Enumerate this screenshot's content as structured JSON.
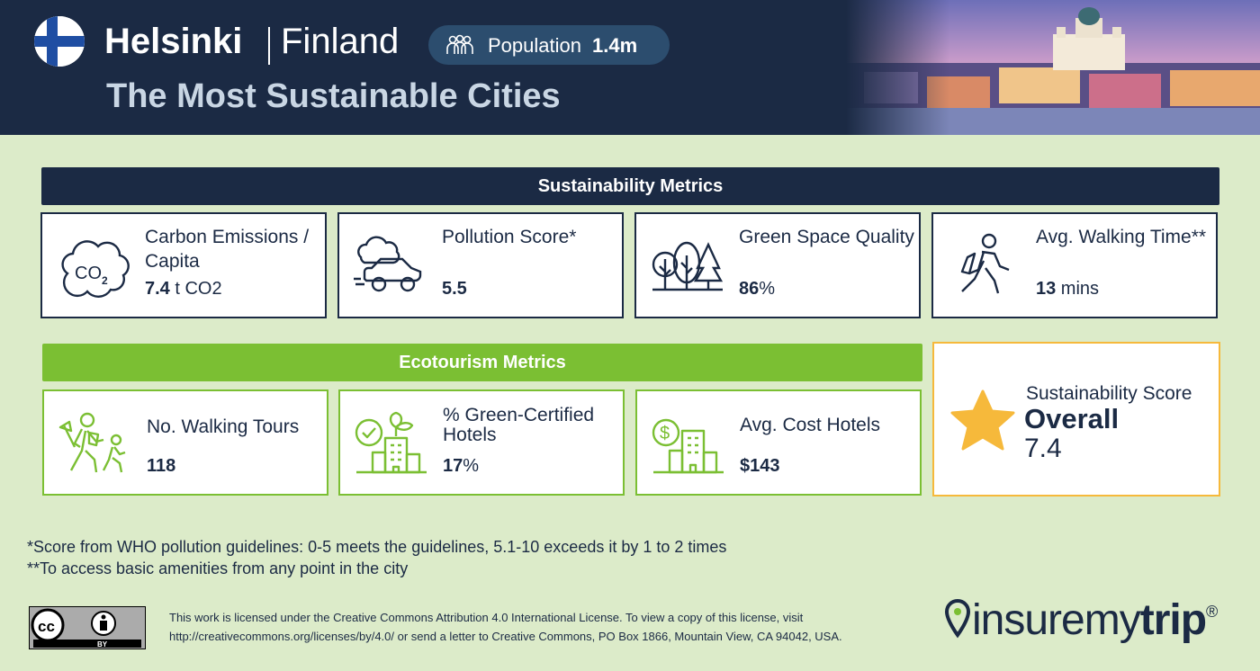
{
  "header": {
    "city": "Helsinki",
    "country": "Finland",
    "population_label": "Population",
    "population_value": "1.4m",
    "subtitle": "The Most Sustainable Cities"
  },
  "sustainability": {
    "title": "Sustainability Metrics",
    "cards": [
      {
        "label": "Carbon Emissions / Capita",
        "value": "7.4",
        "unit": " t CO2",
        "icon": "co2-cloud-icon"
      },
      {
        "label": "Pollution Score*",
        "value": "5.5",
        "unit": "",
        "icon": "car-smog-icon"
      },
      {
        "label": "Green Space Quality",
        "value": "86",
        "unit": "%",
        "icon": "trees-icon"
      },
      {
        "label": "Avg. Walking Time**",
        "value": "13",
        "unit": " mins",
        "icon": "walking-person-icon"
      }
    ]
  },
  "ecotourism": {
    "title": "Ecotourism Metrics",
    "cards": [
      {
        "label": "No. Walking Tours",
        "value": "118",
        "unit": "",
        "icon": "walking-tour-icon"
      },
      {
        "label": "% Green-Certified Hotels",
        "value": "17",
        "unit": "%",
        "icon": "green-hotel-icon"
      },
      {
        "label": "Avg. Cost Hotels",
        "value": "$143",
        "unit": "",
        "icon": "hotel-cost-icon"
      }
    ]
  },
  "score": {
    "label": "Sustainability Score",
    "overall": "Overall",
    "value": "7.4"
  },
  "notes": {
    "note1": "*Score from WHO pollution guidelines: 0-5 meets the guidelines, 5.1-10 exceeds it by 1 to 2 times",
    "note2": "**To access basic amenities from any point in the city"
  },
  "license": {
    "badge_cc": "cc",
    "badge_by": "BY",
    "line1": "This work is licensed under the Creative Commons Attribution 4.0 International License. To view a copy of this license, visit",
    "line2": "http://creativecommons.org/licenses/by/4.0/ or send a letter to Creative Commons, PO Box 1866, Mountain View, CA 94042, USA."
  },
  "logo": {
    "text_regular": "insuremy",
    "text_bold": "trip",
    "reg": "®"
  },
  "colors": {
    "navy": "#1b2a44",
    "green": "#7bbf33",
    "background": "#dcebc9",
    "star": "#f6b93b",
    "finland_blue": "#1f4ea3"
  }
}
